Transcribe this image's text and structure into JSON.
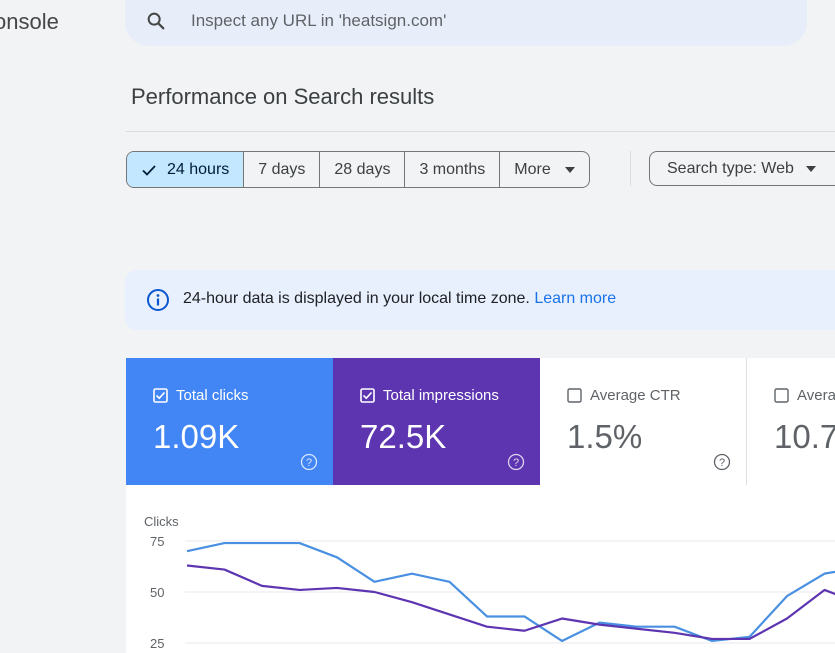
{
  "app": {
    "title": "onsole"
  },
  "search": {
    "placeholder": "Inspect any URL in 'heatsign.com'"
  },
  "page": {
    "title": "Performance on Search results"
  },
  "date_filters": [
    {
      "label": "24 hours",
      "selected": true
    },
    {
      "label": "7 days",
      "selected": false
    },
    {
      "label": "28 days",
      "selected": false
    },
    {
      "label": "3 months",
      "selected": false
    },
    {
      "label": "More",
      "selected": false,
      "dropdown": true
    }
  ],
  "search_type": {
    "label": "Search type: Web"
  },
  "banner": {
    "text": "24-hour data is displayed in your local time zone.",
    "link": "Learn more"
  },
  "metrics": {
    "clicks": {
      "label": "Total clicks",
      "value": "1.09K",
      "checked": true,
      "color": "#4285f4"
    },
    "impressions": {
      "label": "Total impressions",
      "value": "72.5K",
      "checked": true,
      "color": "#5e35b1"
    },
    "ctr": {
      "label": "Average CTR",
      "value": "1.5%",
      "checked": false
    },
    "position": {
      "label": "Avera",
      "value": "10.7",
      "checked": false
    }
  },
  "chart_data": {
    "type": "line",
    "ylabel": "Clicks",
    "y_ticks": [
      75,
      50,
      25
    ],
    "x": [
      0,
      1,
      2,
      3,
      4,
      5,
      6,
      7,
      8,
      9,
      10,
      11,
      12,
      13,
      14,
      15,
      16,
      17,
      18
    ],
    "series": [
      {
        "name": "Total clicks",
        "color": "#4a90e2",
        "values": [
          70,
          74,
          74,
          74,
          67,
          55,
          59,
          55,
          38,
          38,
          26,
          35,
          33,
          33,
          26,
          28,
          48,
          59,
          62
        ]
      },
      {
        "name": "Total impressions",
        "color": "#5e35b1",
        "values": [
          63,
          61,
          53,
          51,
          52,
          50,
          45,
          39,
          33,
          31,
          37,
          34,
          32,
          30,
          27,
          27,
          37,
          51,
          44
        ]
      }
    ],
    "ylim": [
      12,
      86
    ],
    "grid": true
  }
}
